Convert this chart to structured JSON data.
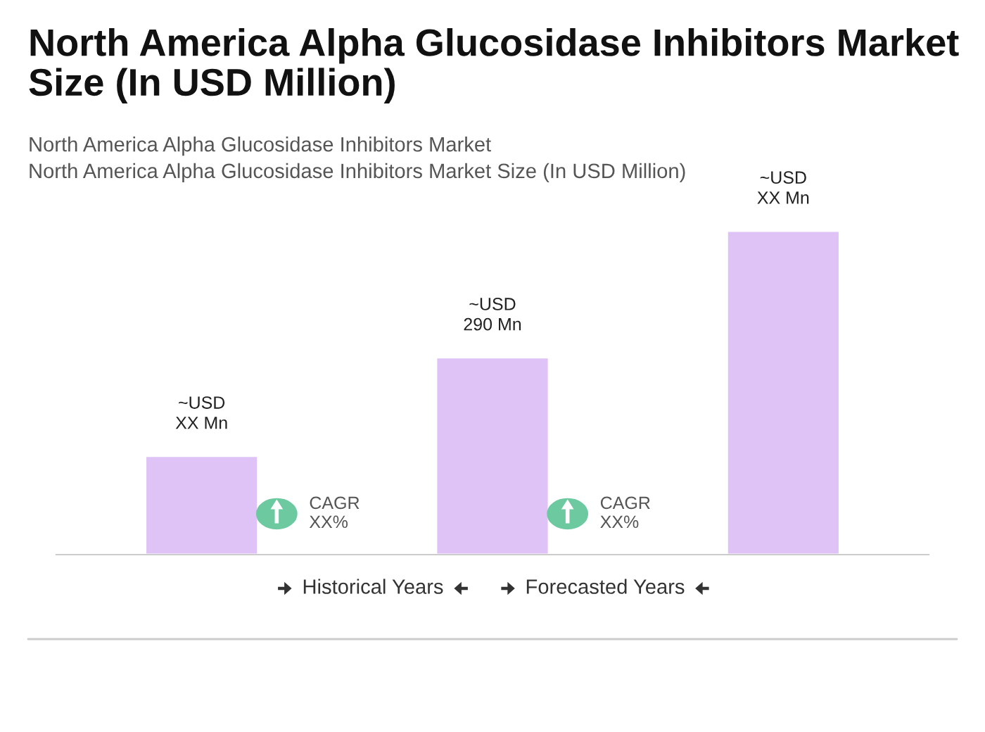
{
  "chart_data": {
    "type": "bar",
    "title": "North America Alpha Glucosidase Inhibitors Market Size (In USD Million)",
    "subtitle": "North America Alpha Glucosidase Inhibitors Market\nNorth America Alpha Glucosidase Inhibitors Market Size (In USD Million)",
    "categories": [
      null,
      null,
      null
    ],
    "values": [
      145,
      290,
      476
    ],
    "color": "#dfc3f7",
    "value_labels": [
      "~USD\nXX Mn",
      "~USD\n290 Mn",
      "~USD\nXX Mn"
    ],
    "annotations": [
      "CAGR\nXX%",
      "CAGR\nXX%",
      "Historical Years",
      "Forecasted Years"
    ],
    "tick_labels": false
  }
}
